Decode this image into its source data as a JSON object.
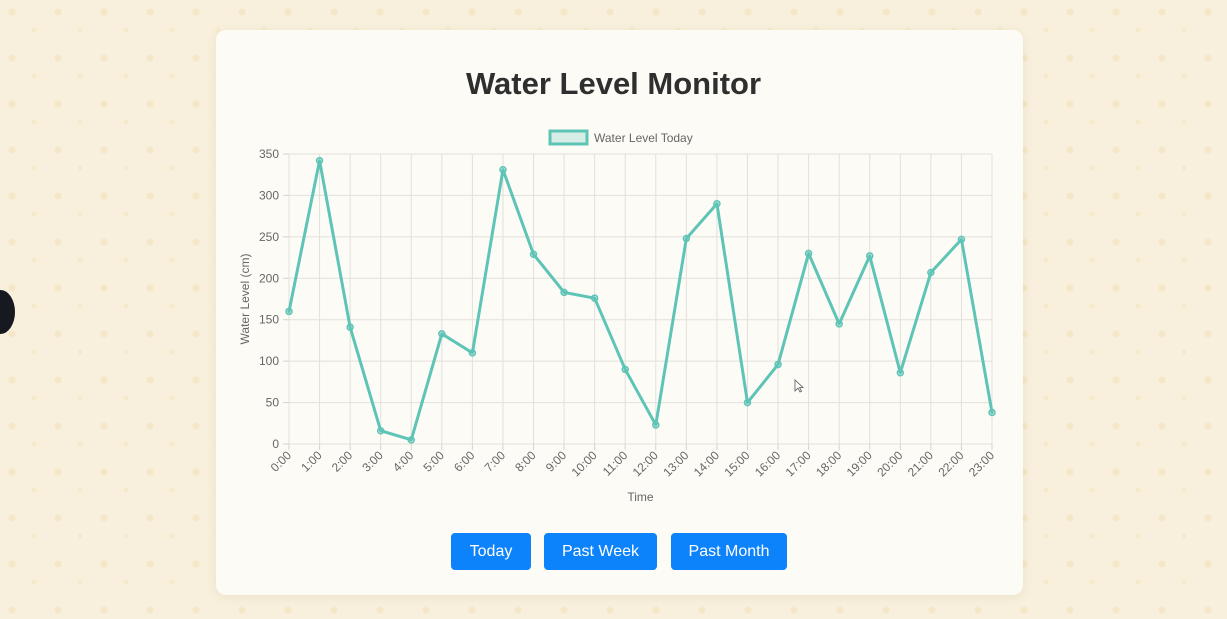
{
  "page": {
    "title": "Water Level Monitor"
  },
  "buttons": {
    "today": "Today",
    "past_week": "Past Week",
    "past_month": "Past Month"
  },
  "colors": {
    "line": "#5ec4b6",
    "button": "#0d83fb",
    "background": "#f8f0dc",
    "card": "#fdfbf6"
  },
  "chart_data": {
    "type": "line",
    "title": "",
    "xlabel": "Time",
    "ylabel": "Water Level (cm)",
    "ylim": [
      0,
      350
    ],
    "yticks": [
      0,
      50,
      100,
      150,
      200,
      250,
      300,
      350
    ],
    "grid": true,
    "legend_position": "top-center",
    "categories": [
      "0:00",
      "1:00",
      "2:00",
      "3:00",
      "4:00",
      "5:00",
      "6:00",
      "7:00",
      "8:00",
      "9:00",
      "10:00",
      "11:00",
      "12:00",
      "13:00",
      "14:00",
      "15:00",
      "16:00",
      "17:00",
      "18:00",
      "19:00",
      "20:00",
      "21:00",
      "22:00",
      "23:00"
    ],
    "series": [
      {
        "name": "Water Level Today",
        "values": [
          160,
          342,
          141,
          16,
          5,
          133,
          110,
          331,
          229,
          183,
          176,
          90,
          23,
          248,
          290,
          50,
          96,
          230,
          145,
          227,
          86,
          207,
          247,
          38
        ]
      }
    ]
  }
}
